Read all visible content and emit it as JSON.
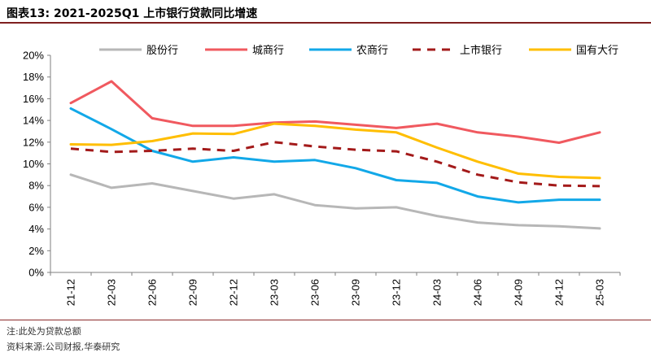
{
  "header": {
    "title": "图表13:  2021-2025Q1 上市银行贷款同比增速"
  },
  "chart_data": {
    "type": "line",
    "title": "2021-2025Q1 上市银行贷款同比增速",
    "xlabel": "",
    "ylabel": "",
    "ylim": [
      0,
      20
    ],
    "y_step": 2,
    "y_tick_format": "percent",
    "grid": false,
    "legend_position": "top",
    "categories": [
      "21-12",
      "22-03",
      "22-06",
      "22-09",
      "22-12",
      "23-03",
      "23-06",
      "23-09",
      "23-12",
      "24-03",
      "24-06",
      "24-09",
      "24-12",
      "25-03"
    ],
    "series": [
      {
        "name": "股份行",
        "color": "#b7b7b7",
        "dash": "solid",
        "values": [
          9.0,
          7.8,
          8.2,
          7.5,
          6.8,
          7.2,
          6.2,
          5.9,
          6.0,
          5.2,
          4.6,
          4.35,
          4.25,
          4.05
        ]
      },
      {
        "name": "城商行",
        "color": "#f0595f",
        "dash": "solid",
        "values": [
          15.6,
          17.6,
          14.2,
          13.5,
          13.5,
          13.8,
          13.9,
          13.6,
          13.3,
          13.7,
          12.9,
          12.5,
          11.95,
          12.9
        ]
      },
      {
        "name": "农商行",
        "color": "#12a8e8",
        "dash": "solid",
        "values": [
          15.1,
          13.2,
          11.2,
          10.2,
          10.6,
          10.2,
          10.35,
          9.6,
          8.5,
          8.25,
          7.0,
          6.45,
          6.7,
          6.7
        ]
      },
      {
        "name": "上市银行",
        "color": "#a31a1a",
        "dash": "dashed",
        "values": [
          11.4,
          11.1,
          11.2,
          11.4,
          11.2,
          12.0,
          11.6,
          11.3,
          11.15,
          10.2,
          9.0,
          8.3,
          8.0,
          7.95
        ]
      },
      {
        "name": "国有大行",
        "color": "#ffbe00",
        "dash": "solid",
        "values": [
          11.8,
          11.75,
          12.1,
          12.8,
          12.75,
          13.7,
          13.5,
          13.15,
          12.9,
          11.5,
          10.2,
          9.1,
          8.8,
          8.7
        ]
      }
    ]
  },
  "footer": {
    "note": "注:此处为贷款总额",
    "source": "资料来源:公司财报,华泰研究"
  }
}
